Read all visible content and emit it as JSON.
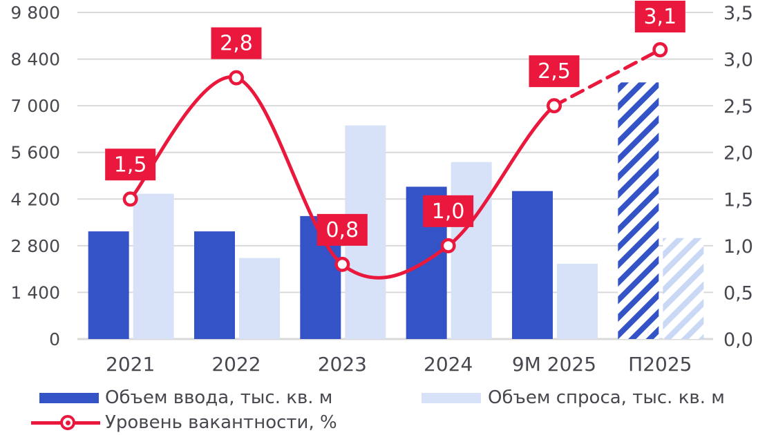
{
  "background": "#ffffff",
  "colors": {
    "bar_primary": "#3453C7",
    "bar_secondary": "#D7E2F8",
    "hatch_secondary_stripe": "#C9D8F5",
    "line": "#E9183C",
    "callout_box": "#E9183C",
    "callout_text": "#FFFFFF",
    "axis_text": "#47474F",
    "gridline": "#D9D9D9",
    "marker_fill": "#FFFFFF"
  },
  "chart_data": {
    "type": "bar+line combo chart",
    "categories": [
      "2021",
      "2022",
      "2023",
      "2024",
      "9М 2025",
      "П2025"
    ],
    "series": [
      {
        "name": "Объем ввода, тыс. кв. м",
        "type": "bar",
        "axis": "left",
        "values": [
          3230,
          3230,
          3690,
          4570,
          4440,
          7700
        ],
        "hatched_forecast_index": 5
      },
      {
        "name": "Объем спроса, тыс. кв. м",
        "type": "bar",
        "axis": "left",
        "values": [
          4360,
          2430,
          6410,
          5310,
          2260,
          3030
        ],
        "hatched_forecast_index": 5
      },
      {
        "name": "Уровень вакантности, %",
        "type": "line",
        "axis": "right",
        "values": [
          1.5,
          2.8,
          0.8,
          1.0,
          2.5,
          3.1
        ],
        "point_labels": [
          "1,5",
          "2,8",
          "0,8",
          "1,0",
          "2,5",
          "3,1"
        ],
        "dashed_from_index": 4
      }
    ],
    "left_axis": {
      "min": 0,
      "max": 9800,
      "step": 1400,
      "tick_labels": [
        "0",
        "1 400",
        "2 800",
        "4 200",
        "5 600",
        "7 000",
        "8 400",
        "9 800"
      ]
    },
    "right_axis": {
      "min": 0,
      "max": 3.5,
      "step": 0.5,
      "tick_labels": [
        "0,0",
        "0,5",
        "1,0",
        "1,5",
        "2,0",
        "2,5",
        "3,0",
        "3,5"
      ]
    },
    "grid": true,
    "legend_position": "bottom"
  },
  "legend": {
    "items": [
      {
        "label": "Объем ввода, тыс. кв. м",
        "swatch": "bar-primary"
      },
      {
        "label": "Объем спроса, тыс. кв. м",
        "swatch": "bar-secondary"
      },
      {
        "label": "Уровень вакантности, %",
        "swatch": "line-marker"
      }
    ]
  }
}
